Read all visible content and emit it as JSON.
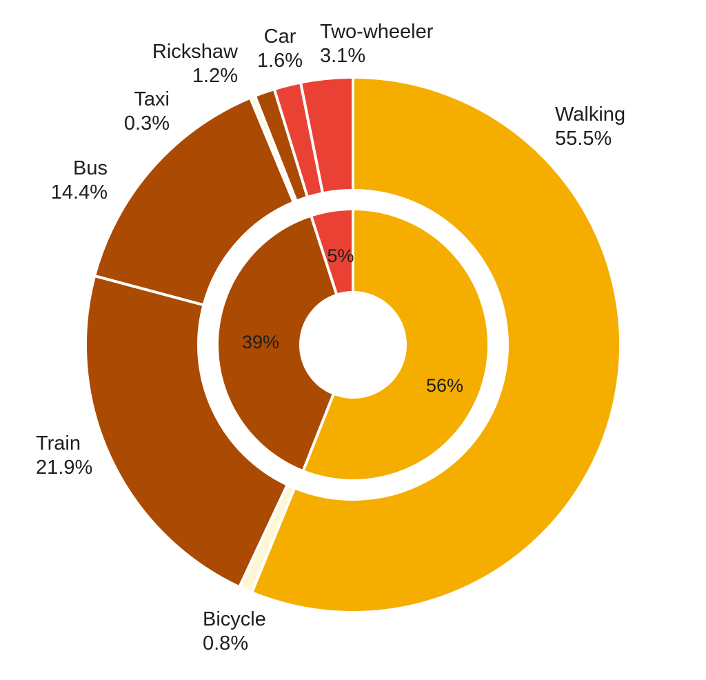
{
  "chart_data": {
    "type": "pie",
    "style": "nested-donut",
    "outer_ring": [
      {
        "name": "Walking",
        "label": "55.5%",
        "value": 55.5,
        "color": "#f5ae00"
      },
      {
        "name": "Bicycle",
        "label": "0.8%",
        "value": 0.8,
        "color": "#fdf7d5"
      },
      {
        "name": "Train",
        "label": "21.9%",
        "value": 21.9,
        "color": "#ab4a02"
      },
      {
        "name": "Bus",
        "label": "14.4%",
        "value": 14.4,
        "color": "#ab4a02"
      },
      {
        "name": "Taxi",
        "label": "0.3%",
        "value": 0.3,
        "color": "#fdf7d5"
      },
      {
        "name": "Rickshaw",
        "label": "1.2%",
        "value": 1.2,
        "color": "#ab4a02"
      },
      {
        "name": "Car",
        "label": "1.6%",
        "value": 1.6,
        "color": "#e94235"
      },
      {
        "name": "Two-wheeler",
        "label": "3.1%",
        "value": 3.1,
        "color": "#e94235"
      }
    ],
    "inner_ring": [
      {
        "label": "56%",
        "value": 56,
        "color": "#f5ae00"
      },
      {
        "label": "39%",
        "value": 39,
        "color": "#ab4a02"
      },
      {
        "label": "5%",
        "value": 5,
        "color": "#e94235"
      }
    ]
  }
}
